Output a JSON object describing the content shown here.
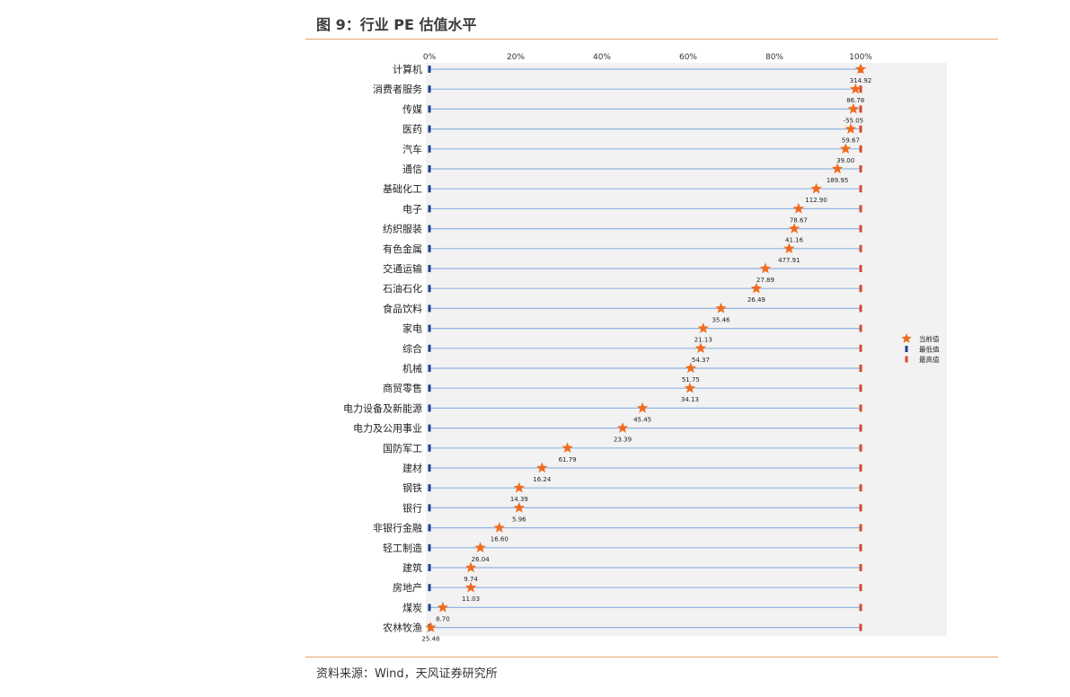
{
  "figure": {
    "title": "图 9：行业 PE 估值水平",
    "source": "资料来源：Wind，天风证券研究所"
  },
  "chart_data": {
    "type": "scatter",
    "title": "",
    "xlabel": "",
    "ylabel": "",
    "x_ticks": [
      "0%",
      "20%",
      "40%",
      "60%",
      "80%",
      "100%"
    ],
    "xlim": [
      0,
      100
    ],
    "x_unit": "percent",
    "grid": "horizontal lines per industry",
    "legend_position": "right",
    "legend": [
      "当前值",
      "最低值",
      "最高值"
    ],
    "colors": {
      "current": "#f26b1d",
      "min": "#1f3f8f",
      "max": "#d9472b",
      "line": "#8fb4e3",
      "plot_bg": "#f2f2f2"
    },
    "categories": [
      "计算机",
      "消费者服务",
      "传媒",
      "医药",
      "汽车",
      "通信",
      "基础化工",
      "电子",
      "纺织服装",
      "有色金属",
      "交通运输",
      "石油石化",
      "食品饮料",
      "家电",
      "综合",
      "机械",
      "商贸零售",
      "电力设备及新能源",
      "电力及公用事业",
      "国防军工",
      "建材",
      "钢铁",
      "银行",
      "非银行金融",
      "轻工制造",
      "建筑",
      "房地产",
      "煤炭",
      "农林牧渔"
    ],
    "series": [
      {
        "name": "当前值",
        "percentile": [
          100,
          98.8,
          98.3,
          97.7,
          96.5,
          94.6,
          89.7,
          85.6,
          84.6,
          83.4,
          77.9,
          75.8,
          67.6,
          63.5,
          62.9,
          60.6,
          60.4,
          49.4,
          44.8,
          32.0,
          26.1,
          20.8,
          20.8,
          16.2,
          11.8,
          9.6,
          9.6,
          3.1,
          0.3
        ]
      },
      {
        "name": "最低值",
        "percentile": [
          0,
          0,
          0,
          0,
          0,
          0,
          0,
          0,
          0,
          0,
          0,
          0,
          0,
          0,
          0,
          0,
          0,
          0,
          0,
          0,
          0,
          0,
          0,
          0,
          0,
          0,
          0,
          0,
          0
        ]
      },
      {
        "name": "最高值",
        "percentile": [
          100,
          100,
          100,
          100,
          100,
          100,
          100,
          100,
          100,
          100,
          100,
          100,
          100,
          100,
          100,
          100,
          100,
          100,
          100,
          100,
          100,
          100,
          100,
          100,
          100,
          100,
          100,
          100,
          100
        ]
      }
    ],
    "value_labels": [
      "314.92",
      "86.78",
      "-55.05",
      "59.67",
      "39.00",
      "189.95",
      "112.90",
      "78.67",
      "41.16",
      "477.91",
      "27.89",
      "26.49",
      "35.46",
      "21.13",
      "54.37",
      "51.75",
      "34.13",
      "45.45",
      "23.39",
      "61.79",
      "16.24",
      "14.39",
      "5.96",
      "16.60",
      "26.04",
      "9.74",
      "11.03",
      "8.70",
      "25.48"
    ]
  }
}
